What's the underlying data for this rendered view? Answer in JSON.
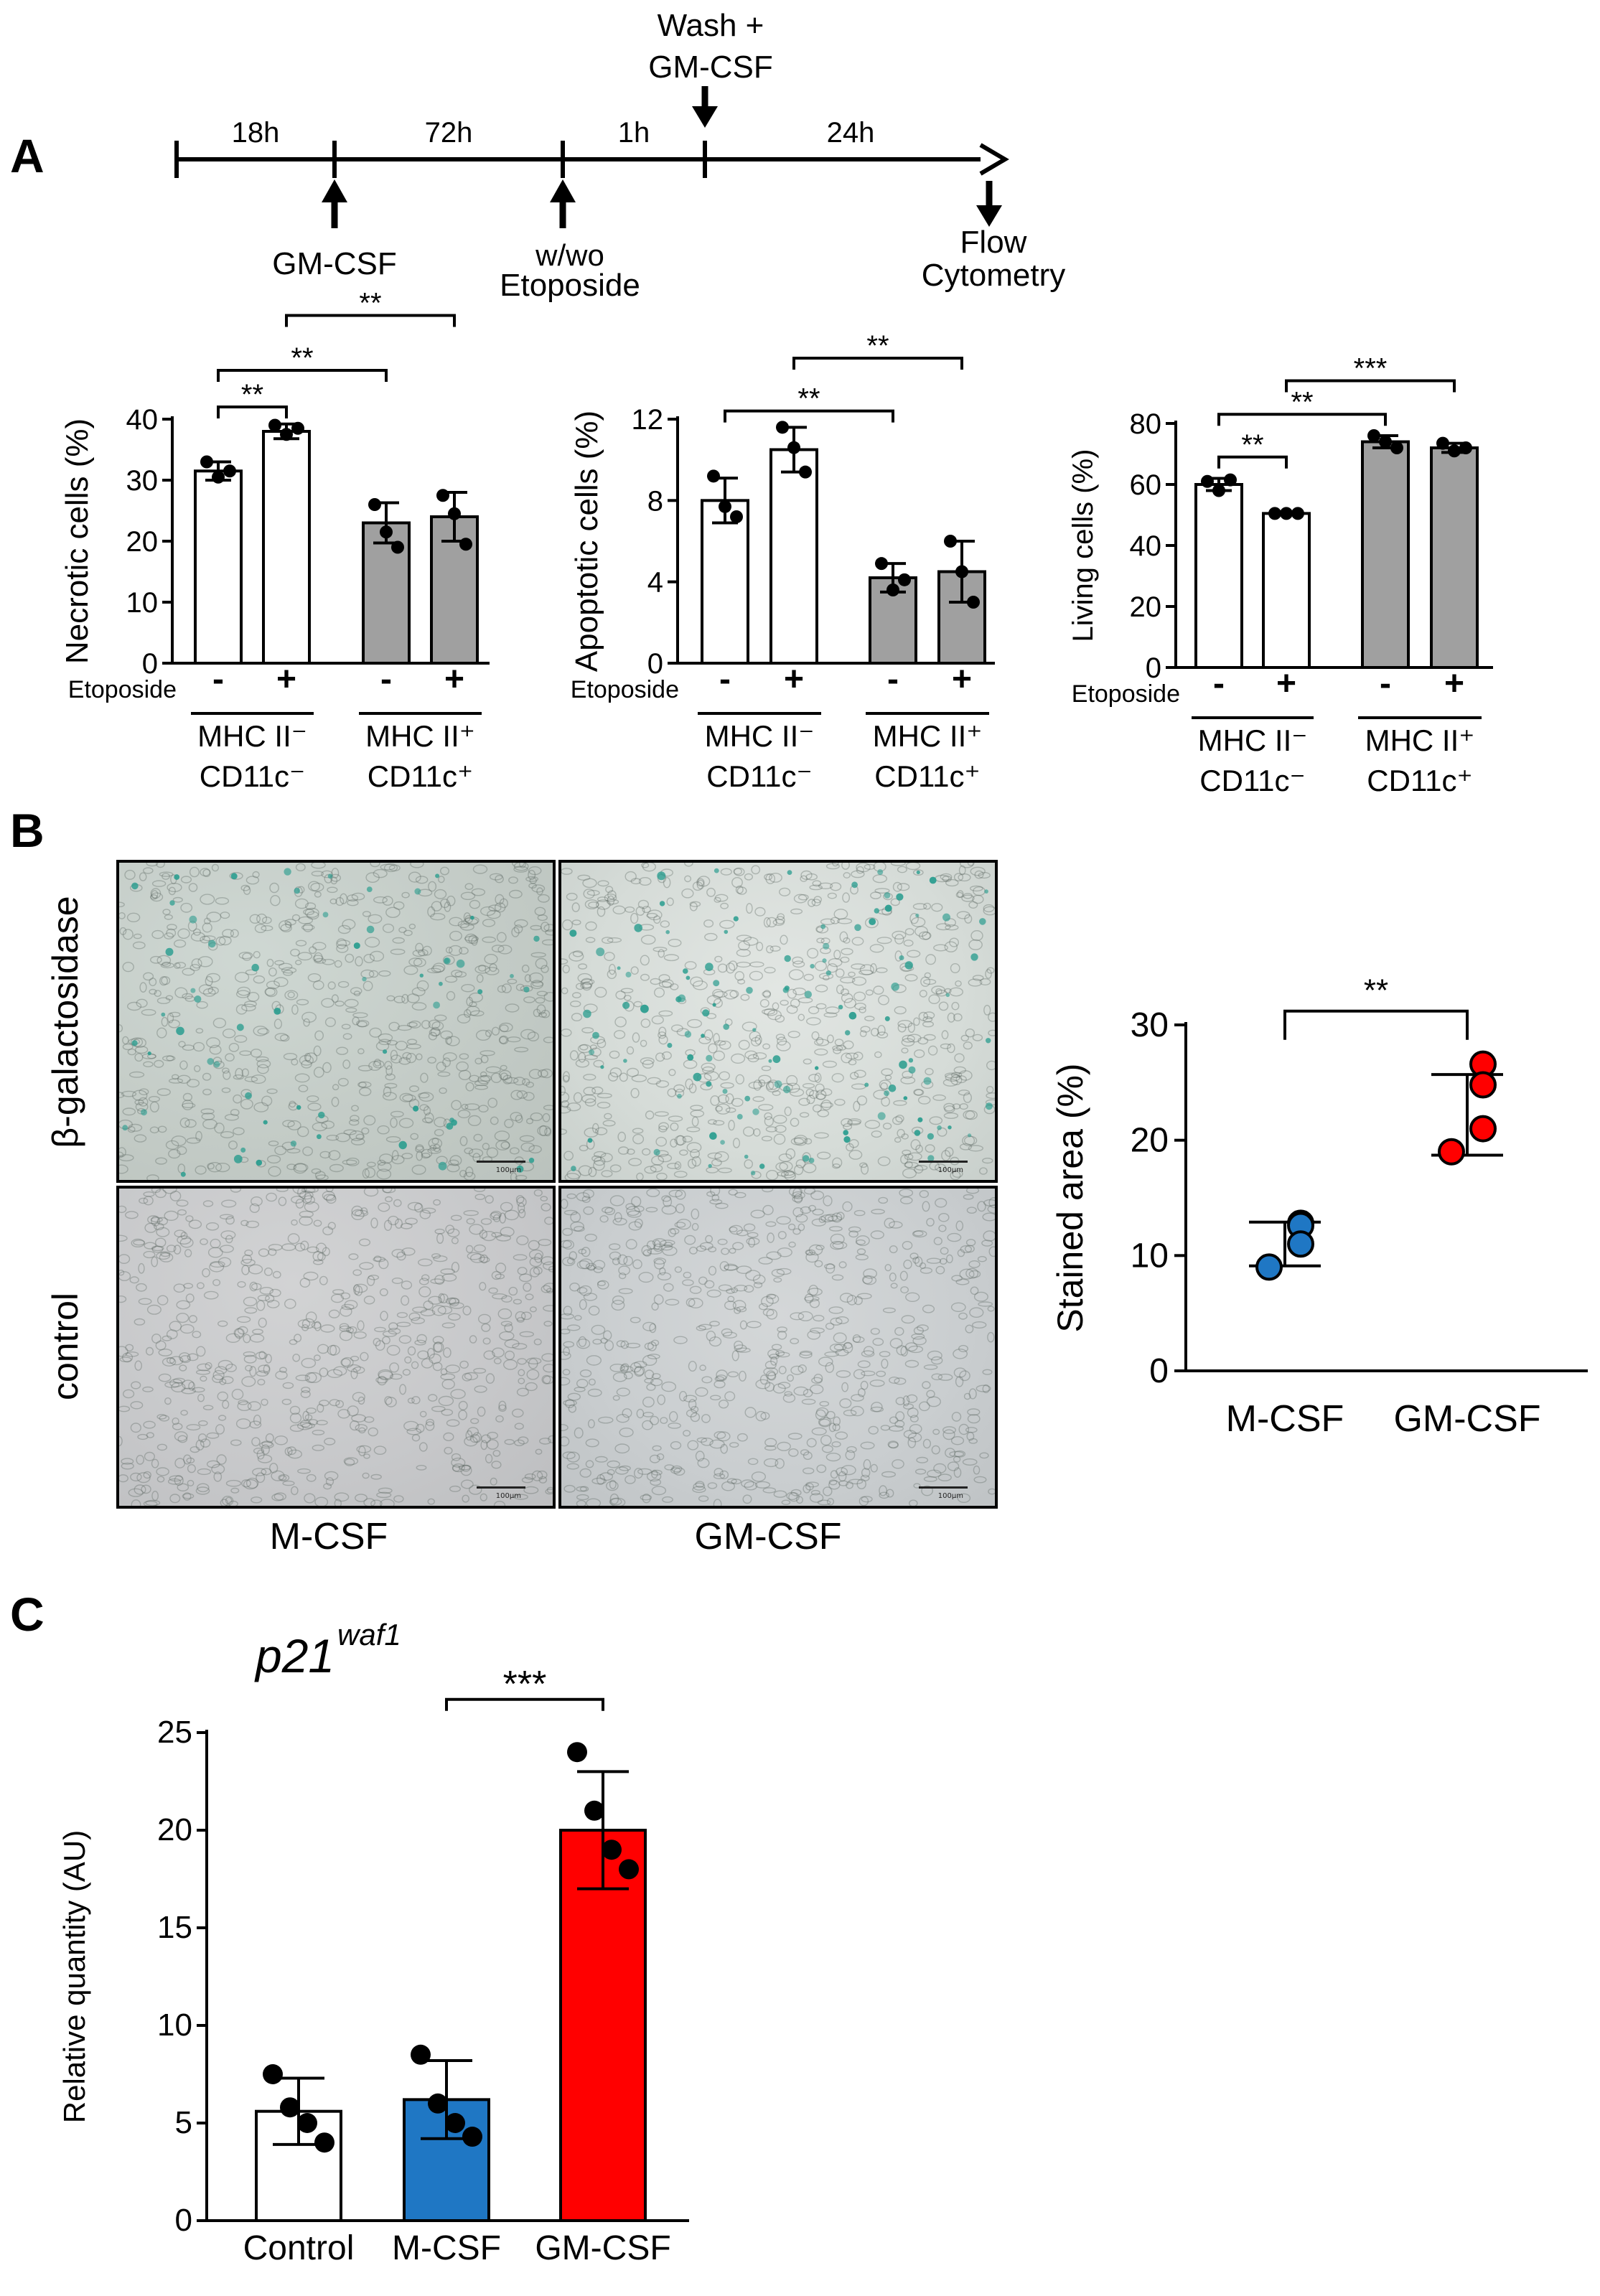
{
  "panels": {
    "a": "A",
    "b": "B",
    "c": "C"
  },
  "timeline": {
    "durations": [
      "18h",
      "72h",
      "1h",
      "24h"
    ],
    "top_label_line1": "Wash +",
    "top_label_line2": "GM-CSF",
    "below_labels": [
      {
        "lines": [
          "GM-CSF"
        ]
      },
      {
        "lines": [
          "w/wo",
          "Etoposide"
        ]
      },
      {
        "lines": [
          "Flow",
          "Cytometry"
        ]
      }
    ]
  },
  "panel_b": {
    "row_labels": [
      "β-galactosidase",
      "control"
    ],
    "col_labels": [
      "M-CSF",
      "GM-CSF"
    ],
    "scale_bar_label": "100μm",
    "stain_color": "#2a9d8f"
  },
  "colors": {
    "white_bar": "#ffffff",
    "gray_bar": "#a0a0a0",
    "blue": "#1f77c4",
    "red": "#ff0000"
  },
  "chart_data": [
    {
      "id": "necrotic",
      "type": "bar",
      "ylabel": "Necrotic cells (%)",
      "ylim": [
        0,
        40
      ],
      "yticks": [
        0,
        10,
        20,
        30,
        40
      ],
      "row_label": "Etoposide",
      "categories": [
        "-",
        "+",
        "-",
        "+"
      ],
      "groups": [
        {
          "line1": "MHC II⁻",
          "line2": "CD11c⁻"
        },
        {
          "line1": "MHC II⁺",
          "line2": "CD11c⁺"
        }
      ],
      "values": [
        31.5,
        38,
        23,
        24
      ],
      "errors": [
        1.5,
        1.2,
        3.3,
        4
      ],
      "points": [
        [
          33,
          30.5,
          31.5
        ],
        [
          39,
          37.5,
          38.5
        ],
        [
          26,
          21.5,
          19
        ],
        [
          27.5,
          24.5,
          19.5
        ]
      ],
      "bar_colors": [
        "white",
        "white",
        "gray",
        "gray"
      ],
      "significance": [
        {
          "from": 0,
          "to": 1,
          "label": "**",
          "y": 42
        },
        {
          "from": 0,
          "to": 2,
          "label": "**",
          "y": 48
        },
        {
          "from": 1,
          "to": 3,
          "label": "**",
          "y": 57
        }
      ]
    },
    {
      "id": "apoptotic",
      "type": "bar",
      "ylabel": "Apoptotic cells (%)",
      "ylim": [
        0,
        12
      ],
      "yticks": [
        0,
        4,
        8,
        12
      ],
      "row_label": "Etoposide",
      "categories": [
        "-",
        "+",
        "-",
        "+"
      ],
      "groups": [
        {
          "line1": "MHC II⁻",
          "line2": "CD11c⁻"
        },
        {
          "line1": "MHC II⁺",
          "line2": "CD11c⁺"
        }
      ],
      "values": [
        8.0,
        10.5,
        4.2,
        4.5
      ],
      "errors": [
        1.1,
        1.1,
        0.7,
        1.5
      ],
      "points": [
        [
          9.2,
          7.7,
          7.2
        ],
        [
          11.6,
          10.6,
          9.4
        ],
        [
          4.9,
          3.6,
          4.1
        ],
        [
          6.0,
          4.5,
          3.0
        ]
      ],
      "bar_colors": [
        "white",
        "white",
        "gray",
        "gray"
      ],
      "significance": [
        {
          "from": 0,
          "to": 2,
          "label": "**",
          "y": 12.4
        },
        {
          "from": 1,
          "to": 3,
          "label": "**",
          "y": 15.0
        }
      ]
    },
    {
      "id": "living",
      "type": "bar",
      "ylabel": "Living cells (%)",
      "ylim": [
        0,
        80
      ],
      "yticks": [
        0,
        20,
        40,
        60,
        80
      ],
      "row_label": "Etoposide",
      "categories": [
        "-",
        "+",
        "-",
        "+"
      ],
      "groups": [
        {
          "line1": "MHC II⁻",
          "line2": "CD11c⁻"
        },
        {
          "line1": "MHC II⁺",
          "line2": "CD11c⁺"
        }
      ],
      "values": [
        60,
        50.5,
        74,
        72
      ],
      "errors": [
        2,
        0.5,
        2,
        1.5
      ],
      "points": [
        [
          61,
          58,
          61.5
        ],
        [
          50.5,
          50.5,
          50.5
        ],
        [
          76,
          74,
          72
        ],
        [
          73.5,
          71,
          72
        ]
      ],
      "bar_colors": [
        "white",
        "white",
        "gray",
        "gray"
      ],
      "significance": [
        {
          "from": 0,
          "to": 1,
          "label": "**",
          "y": 69
        },
        {
          "from": 0,
          "to": 2,
          "label": "**",
          "y": 83
        },
        {
          "from": 1,
          "to": 3,
          "label": "***",
          "y": 94
        }
      ]
    },
    {
      "id": "stained",
      "type": "scatter",
      "ylabel": "Stained area (%)",
      "ylim": [
        0,
        30
      ],
      "yticks": [
        0,
        10,
        20,
        30
      ],
      "categories": [
        "M-CSF",
        "GM-CSF"
      ],
      "mean": [
        11,
        22.2
      ],
      "sd": [
        1.9,
        3.5
      ],
      "points": [
        [
          12.8,
          12.6,
          11,
          9
        ],
        [
          26.6,
          24.8,
          21,
          19
        ]
      ],
      "point_colors": [
        "blue",
        "red"
      ],
      "significance": [
        {
          "from": 0,
          "to": 1,
          "label": "**",
          "y": 31.2
        }
      ]
    },
    {
      "id": "p21",
      "type": "bar",
      "title_main": "p21",
      "title_sup": "waf1",
      "ylabel": "Relative quantity (AU)",
      "ylim": [
        0,
        25
      ],
      "yticks": [
        0,
        5,
        10,
        15,
        20,
        25
      ],
      "categories": [
        "Control",
        "M-CSF",
        "GM-CSF"
      ],
      "values": [
        5.6,
        6.2,
        20
      ],
      "errors": [
        1.7,
        2.0,
        3.0
      ],
      "points": [
        [
          7.5,
          5.8,
          5.0,
          4.0
        ],
        [
          8.5,
          6.0,
          5.0,
          4.3
        ],
        [
          24.0,
          21.0,
          19.0,
          18.0
        ]
      ],
      "bar_colors": [
        "white",
        "blue",
        "red"
      ],
      "significance": [
        {
          "from": 1,
          "to": 2,
          "label": "***",
          "y": 26.7
        }
      ]
    }
  ]
}
